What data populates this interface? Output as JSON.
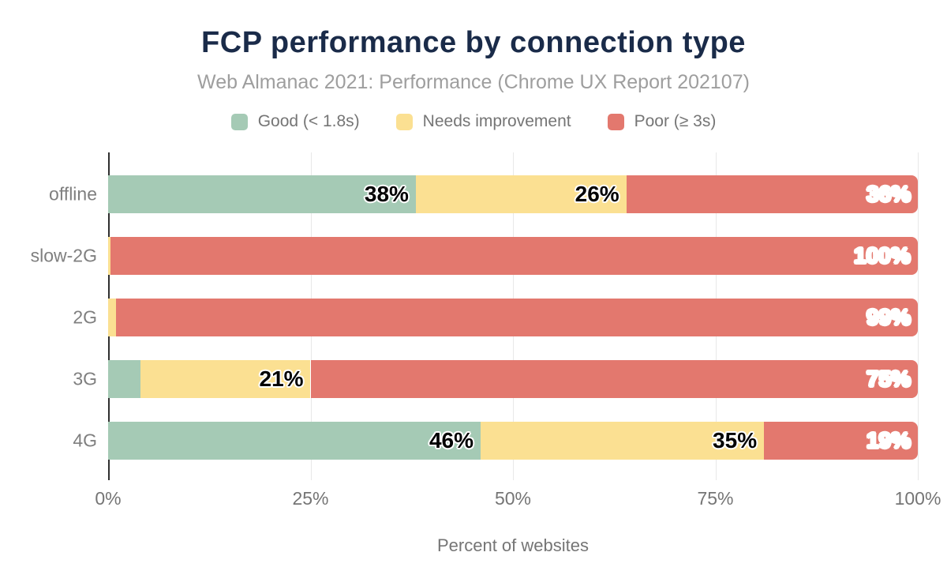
{
  "title": "FCP performance by connection type",
  "subtitle": "Web Almanac 2021: Performance (Chrome UX Report 202107)",
  "colors": {
    "title_text": "#1a2b49",
    "subtitle_text": "#9e9e9e",
    "axis_text": "#757575",
    "category_text": "#7f7f7f",
    "gridline": "#e8e8e8",
    "axis_line": "#2f2f2f",
    "background": "#ffffff"
  },
  "chart_data": {
    "type": "bar",
    "orientation": "horizontal",
    "stacked": true,
    "title": "FCP performance by connection type",
    "subtitle": "Web Almanac 2021: Performance (Chrome UX Report 202107)",
    "categories": [
      "offline",
      "slow-2G",
      "2G",
      "3G",
      "4G"
    ],
    "series": [
      {
        "name": "Good (< 1.8s)",
        "color": "#a5cab5",
        "label_color": "#000000",
        "values": [
          38,
          0,
          0,
          4,
          46
        ]
      },
      {
        "name": "Needs improvement",
        "color": "#fbe092",
        "label_color": "#000000",
        "values": [
          26,
          0,
          1,
          21,
          35
        ]
      },
      {
        "name": "Poor (≥ 3s)",
        "color": "#e3786e",
        "label_color": "#ffffff",
        "values": [
          36,
          100,
          99,
          75,
          19
        ]
      }
    ],
    "value_suffix": "%",
    "xlabel": "Percent of websites",
    "ylabel": "",
    "xlim": [
      0,
      100
    ],
    "x_ticks": [
      {
        "label": "0%",
        "value": 0
      },
      {
        "label": "25%",
        "value": 25
      },
      {
        "label": "50%",
        "value": 50
      },
      {
        "label": "75%",
        "value": 75
      },
      {
        "label": "100%",
        "value": 100
      }
    ],
    "grid": "vertical",
    "legend_position": "top"
  }
}
